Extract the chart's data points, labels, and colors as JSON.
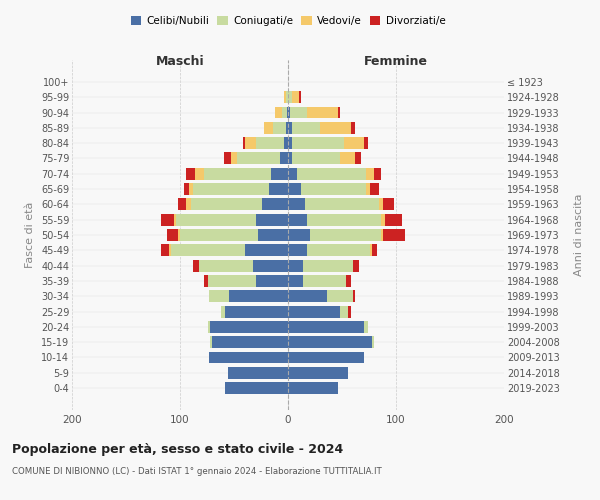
{
  "age_groups": [
    "0-4",
    "5-9",
    "10-14",
    "15-19",
    "20-24",
    "25-29",
    "30-34",
    "35-39",
    "40-44",
    "45-49",
    "50-54",
    "55-59",
    "60-64",
    "65-69",
    "70-74",
    "75-79",
    "80-84",
    "85-89",
    "90-94",
    "95-99",
    "100+"
  ],
  "birth_years": [
    "2019-2023",
    "2014-2018",
    "2009-2013",
    "2004-2008",
    "1999-2003",
    "1994-1998",
    "1989-1993",
    "1984-1988",
    "1979-1983",
    "1974-1978",
    "1969-1973",
    "1964-1968",
    "1959-1963",
    "1954-1958",
    "1949-1953",
    "1944-1948",
    "1939-1943",
    "1934-1938",
    "1929-1933",
    "1924-1928",
    "≤ 1923"
  ],
  "colors": {
    "celibi": "#4a6fa5",
    "coniugati": "#c8dba0",
    "vedovi": "#f5c96a",
    "divorziati": "#cc2222"
  },
  "males": {
    "celibi": [
      58,
      56,
      73,
      70,
      72,
      58,
      55,
      30,
      32,
      40,
      28,
      30,
      24,
      18,
      16,
      7,
      4,
      2,
      1,
      0,
      0
    ],
    "coniugati": [
      0,
      0,
      0,
      2,
      2,
      4,
      18,
      44,
      50,
      68,
      72,
      74,
      66,
      70,
      62,
      40,
      26,
      12,
      5,
      2,
      0
    ],
    "vedovi": [
      0,
      0,
      0,
      0,
      0,
      0,
      0,
      0,
      0,
      2,
      2,
      2,
      4,
      4,
      8,
      6,
      10,
      8,
      6,
      2,
      0
    ],
    "divorziati": [
      0,
      0,
      0,
      0,
      0,
      0,
      0,
      4,
      6,
      8,
      10,
      12,
      8,
      4,
      8,
      6,
      2,
      0,
      0,
      0,
      0
    ]
  },
  "females": {
    "nubili": [
      46,
      56,
      70,
      78,
      70,
      48,
      36,
      14,
      14,
      18,
      20,
      18,
      16,
      12,
      8,
      4,
      4,
      4,
      2,
      0,
      0
    ],
    "coniugate": [
      0,
      0,
      0,
      2,
      4,
      8,
      24,
      40,
      46,
      58,
      66,
      68,
      68,
      60,
      64,
      44,
      48,
      26,
      16,
      4,
      0
    ],
    "vedove": [
      0,
      0,
      0,
      0,
      0,
      0,
      0,
      0,
      0,
      2,
      2,
      4,
      4,
      4,
      8,
      14,
      18,
      28,
      28,
      6,
      0
    ],
    "divorziate": [
      0,
      0,
      0,
      0,
      0,
      2,
      2,
      4,
      6,
      4,
      20,
      16,
      10,
      8,
      6,
      6,
      4,
      4,
      2,
      2,
      0
    ]
  },
  "xlim": [
    -200,
    200
  ],
  "xticks": [
    -200,
    -100,
    0,
    100,
    200
  ],
  "xticklabels": [
    "200",
    "100",
    "0",
    "100",
    "200"
  ],
  "title": "Popolazione per età, sesso e stato civile - 2024",
  "subtitle": "COMUNE DI NIBIONNO (LC) - Dati ISTAT 1° gennaio 2024 - Elaborazione TUTTITALIA.IT",
  "ylabel_left": "Fasce di età",
  "ylabel_right": "Anni di nascita",
  "label_maschi": "Maschi",
  "label_femmine": "Femmine",
  "legend_labels": [
    "Celibi/Nubili",
    "Coniugati/e",
    "Vedovi/e",
    "Divorziati/e"
  ],
  "bg_color": "#f8f8f8"
}
